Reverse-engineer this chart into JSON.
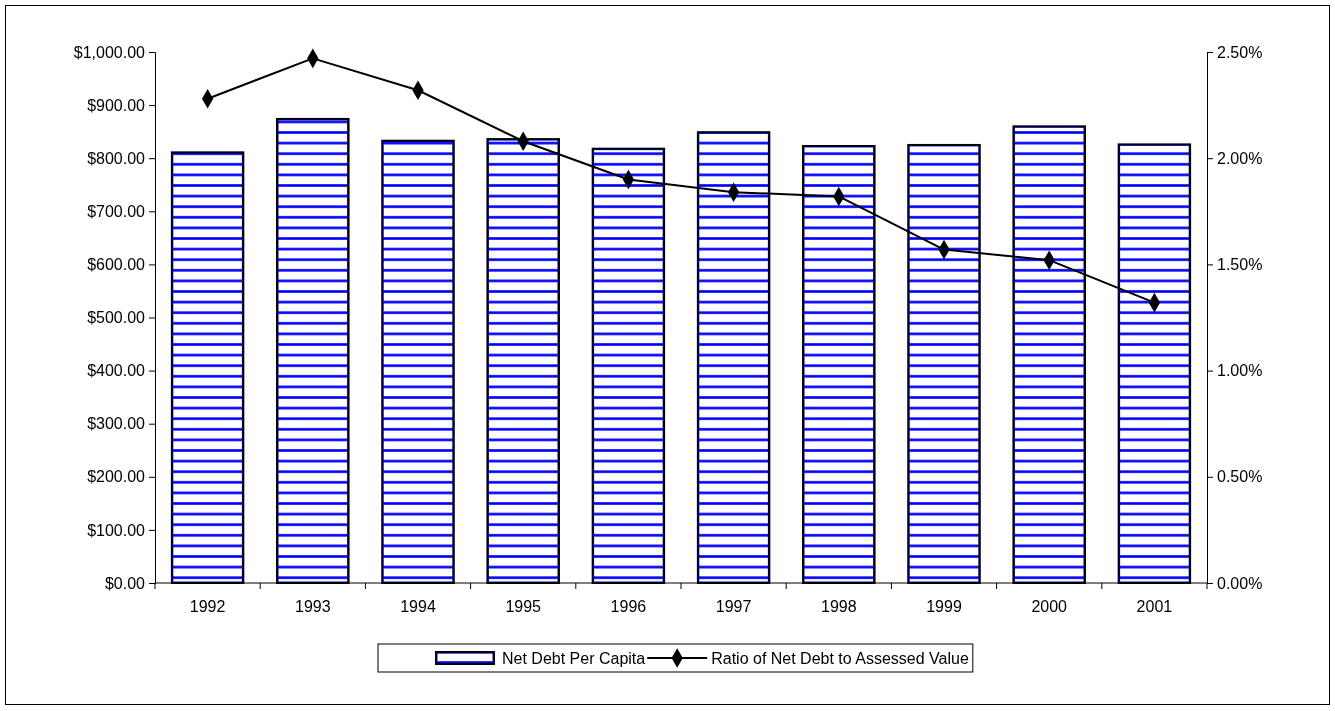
{
  "chart_data": {
    "type": "bar",
    "categories": [
      "1992",
      "1993",
      "1994",
      "1995",
      "1996",
      "1997",
      "1998",
      "1999",
      "2000",
      "2001"
    ],
    "series": [
      {
        "name": "Net Debt Per Capita",
        "color": "#0000ff",
        "values": [
          811,
          874,
          833,
          836,
          818,
          849,
          823,
          825,
          860,
          826
        ]
      },
      {
        "name": "Ratio of Net Debt to Assessed Value",
        "type": "line",
        "axis": "y2",
        "color": "#000000",
        "marker": "diamond",
        "values": [
          2.28,
          2.47,
          2.32,
          2.08,
          1.9,
          1.84,
          1.82,
          1.57,
          1.52,
          1.32
        ]
      }
    ],
    "ylim": [
      0,
      1000
    ],
    "yticks": [
      {
        "value": 0,
        "label": "$0.00"
      },
      {
        "value": 100,
        "label": "$100.00"
      },
      {
        "value": 200,
        "label": "$200.00"
      },
      {
        "value": 300,
        "label": "$300.00"
      },
      {
        "value": 400,
        "label": "$400.00"
      },
      {
        "value": 500,
        "label": "$500.00"
      },
      {
        "value": 600,
        "label": "$600.00"
      },
      {
        "value": 700,
        "label": "$700.00"
      },
      {
        "value": 800,
        "label": "$800.00"
      },
      {
        "value": 900,
        "label": "$900.00"
      },
      {
        "value": 1000,
        "label": "$1,000.00"
      }
    ],
    "y2lim": [
      0,
      2.5
    ],
    "y2ticks": [
      {
        "value": 0,
        "label": "0.00%"
      },
      {
        "value": 0.5,
        "label": "0.50%"
      },
      {
        "value": 1,
        "label": "1.00%"
      },
      {
        "value": 1.5,
        "label": "1.50%"
      },
      {
        "value": 2,
        "label": "2.00%"
      },
      {
        "value": 2.5,
        "label": "2.50%"
      }
    ],
    "grid": false,
    "legend": "bottom"
  }
}
